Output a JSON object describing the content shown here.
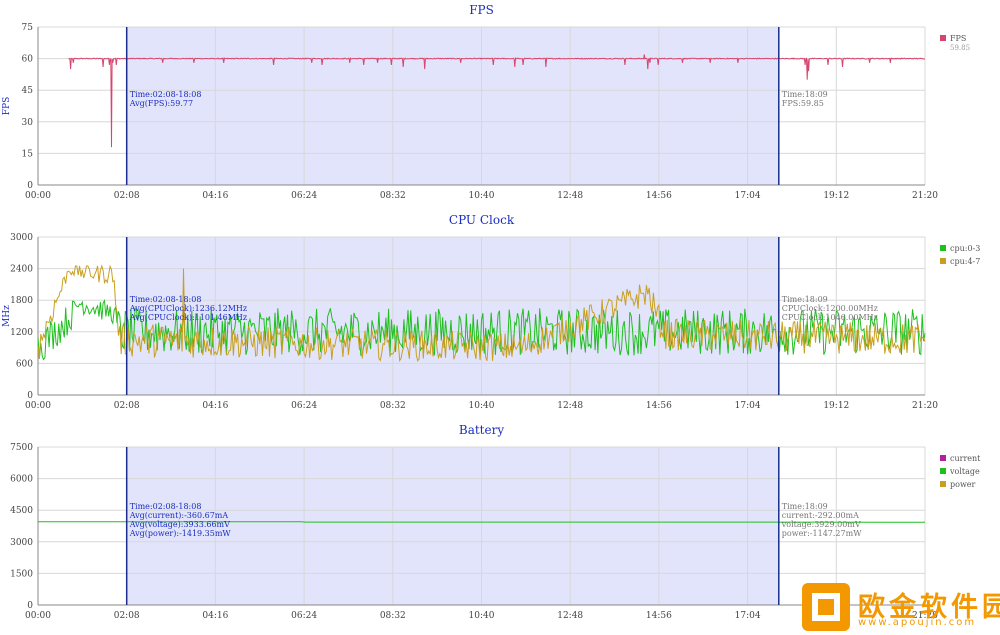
{
  "chart_data": [
    {
      "type": "line",
      "title": "FPS",
      "ylabel": "FPS",
      "ylim": [
        0,
        75
      ],
      "yticks": [
        "0",
        "15",
        "30",
        "45",
        "60",
        "75"
      ],
      "xticks": [
        "00:00",
        "02:08",
        "04:16",
        "06:24",
        "08:32",
        "10:40",
        "12:48",
        "14:56",
        "17:04",
        "19:12",
        "21:20"
      ],
      "xlim_minutes": [
        0,
        1280
      ],
      "grid": true,
      "legend_position": "right",
      "selection": {
        "start_minutes": 128,
        "end_minutes": 1069
      },
      "series": [
        {
          "name": "FPS",
          "color": "#d6456e",
          "legend_value": "59.85",
          "base": 60,
          "noise": 0.4,
          "dips": [
            [
              47,
              55
            ],
            [
              51,
              58
            ],
            [
              94,
              56
            ],
            [
              103,
              57
            ],
            [
              106,
              18
            ],
            [
              108,
              58
            ],
            [
              111,
              60
            ],
            [
              113,
              57
            ],
            [
              180,
              58
            ],
            [
              225,
              58
            ],
            [
              268,
              58
            ],
            [
              340,
              57
            ],
            [
              395,
              58
            ],
            [
              410,
              57
            ],
            [
              450,
              58
            ],
            [
              470,
              57
            ],
            [
              490,
              58
            ],
            [
              510,
              57
            ],
            [
              527,
              56
            ],
            [
              558,
              55
            ],
            [
              610,
              58
            ],
            [
              657,
              57
            ],
            [
              688,
              56
            ],
            [
              700,
              57
            ],
            [
              733,
              56
            ],
            [
              847,
              57
            ],
            [
              860,
              60
            ],
            [
              880,
              55
            ],
            [
              883,
              58
            ],
            [
              895,
              57
            ],
            [
              930,
              58
            ],
            [
              970,
              58
            ],
            [
              1010,
              58
            ],
            [
              1107,
              57
            ],
            [
              1110,
              50
            ],
            [
              1112,
              54
            ],
            [
              1140,
              57
            ],
            [
              1161,
              56
            ],
            [
              1200,
              58
            ],
            [
              1230,
              58
            ]
          ],
          "spikes": [
            [
              875,
              62
            ]
          ]
        }
      ],
      "annotations": [
        {
          "lines": [
            "Time:02:08-18:08",
            "Avg(FPS):59.77"
          ],
          "color": "#1a2dbf",
          "anchor": "left-marker"
        },
        {
          "lines": [
            "Time:18:09",
            "FPS:59.85"
          ],
          "color": "#777777",
          "anchor": "right-marker"
        }
      ]
    },
    {
      "type": "line",
      "title": "CPU Clock",
      "ylabel": "MHz",
      "ylim": [
        0,
        3000
      ],
      "yticks": [
        "0",
        "600",
        "1200",
        "1800",
        "2400",
        "3000"
      ],
      "xticks": [
        "00:00",
        "02:08",
        "04:16",
        "06:24",
        "08:32",
        "10:40",
        "12:48",
        "14:56",
        "17:04",
        "19:12",
        "21:20"
      ],
      "xlim_minutes": [
        0,
        1280
      ],
      "grid": true,
      "legend_position": "right",
      "selection": {
        "start_minutes": 128,
        "end_minutes": 1069
      },
      "series": [
        {
          "name": "cpu:0-3",
          "color": "#1fbf1f",
          "segments": [
            [
              0,
              900,
              350
            ],
            [
              45,
              1450,
              300
            ],
            [
              60,
              1750,
              200
            ],
            [
              108,
              1550,
              200
            ],
            [
              118,
              1200,
              450
            ],
            [
              1280,
              1200,
              450
            ]
          ]
        },
        {
          "name": "cpu:4-7",
          "color": "#c8a020",
          "segments": [
            [
              0,
              900,
              300
            ],
            [
              45,
              2400,
              120
            ],
            [
              60,
              2350,
              180
            ],
            [
              108,
              2300,
              200
            ],
            [
              118,
              1050,
              330
            ],
            [
              700,
              900,
              280
            ],
            [
              880,
              1950,
              250
            ],
            [
              905,
              1150,
              300
            ],
            [
              1280,
              1050,
              320
            ]
          ],
          "peaks": [
            [
              210,
              2400
            ]
          ]
        }
      ],
      "annotations": [
        {
          "lines": [
            "Time:02:08-18:08",
            "Avg(CPUClock):1236.12MHz",
            "Avg(CPUClock):1101.46MHz"
          ],
          "color": "#1a2dbf",
          "anchor": "left-marker"
        },
        {
          "lines": [
            "Time:18:09",
            "CPUClock:1200.00MHz",
            "CPUClock:1046.00MHz"
          ],
          "color": "#777777",
          "anchor": "right-marker"
        }
      ]
    },
    {
      "type": "line",
      "title": "Battery",
      "ylabel": "",
      "ylim": [
        0,
        7500
      ],
      "yticks": [
        "0",
        "1500",
        "3000",
        "4500",
        "6000",
        "7500"
      ],
      "xticks": [
        "00:00",
        "02:08",
        "04:16",
        "06:24",
        "08:32",
        "10:40",
        "12:48",
        "14:56",
        "17:04",
        "19:12",
        "21:20"
      ],
      "xlim_minutes": [
        0,
        1280
      ],
      "grid": true,
      "legend_position": "right",
      "selection": {
        "start_minutes": 128,
        "end_minutes": 1069
      },
      "series": [
        {
          "name": "current",
          "color": "#b0209f",
          "points": []
        },
        {
          "name": "voltage",
          "color": "#1fbf1f",
          "points": [
            [
              0,
              3950
            ],
            [
              380,
              3950
            ],
            [
              385,
              3933
            ],
            [
              1280,
              3929
            ]
          ]
        },
        {
          "name": "power",
          "color": "#c8a020",
          "points": []
        }
      ],
      "annotations": [
        {
          "lines": [
            "Time:02:08-18:08",
            "Avg(current):-360.67mA",
            "Avg(voltage):3933.66mV",
            "Avg(power):-1419.35mW"
          ],
          "color": "#1a2dbf",
          "anchor": "left-marker"
        },
        {
          "lines": [
            "Time:18:09",
            "current:-292.00mA",
            "voltage:3929.00mV",
            "power:-1147.27mW"
          ],
          "color": "#777777",
          "anchor": "right-marker"
        }
      ]
    }
  ],
  "watermark": {
    "brand": "欧金软件园",
    "url": "www.apoujin.com",
    "color": "#f39800"
  }
}
